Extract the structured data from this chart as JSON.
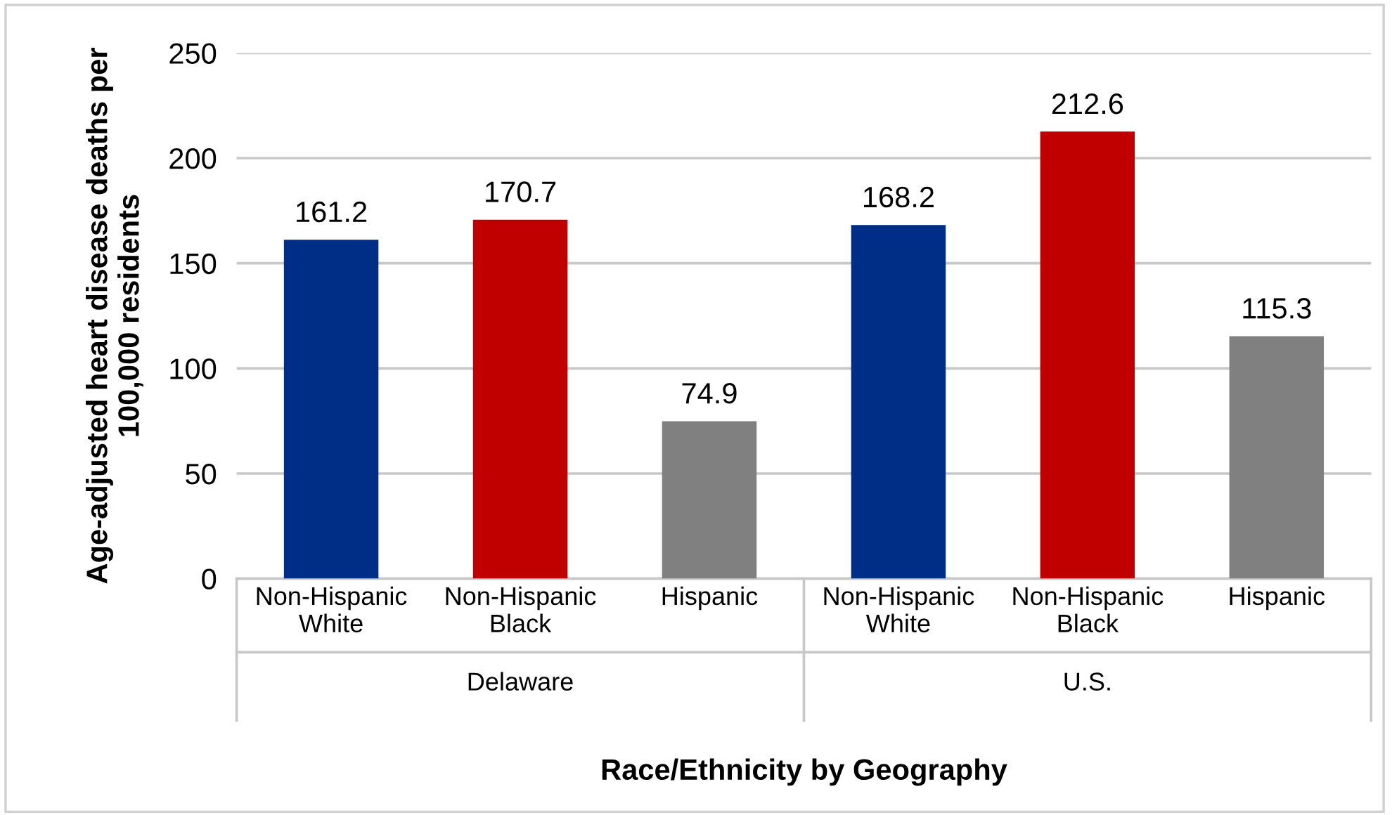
{
  "chart_data": {
    "type": "bar",
    "categories": [
      "Non-Hispanic\nWhite",
      "Non-Hispanic\nBlack",
      "Hispanic",
      "Non-Hispanic\nWhite",
      "Non-Hispanic\nBlack",
      "Hispanic"
    ],
    "values": [
      161.2,
      170.7,
      74.9,
      168.2,
      212.6,
      115.3
    ],
    "colors": [
      "#002d86",
      "#c00000",
      "#808080",
      "#002d86",
      "#c00000",
      "#808080"
    ],
    "xlabel": "Race/Ethnicity by Geography",
    "ylabel": "Age-adjusted heart disease deaths per\n100,000 residents",
    "annotations": [
      "Delaware",
      "U.S."
    ],
    "ylim": [
      0,
      250
    ],
    "yticks": [
      0,
      50,
      100,
      150,
      200,
      250
    ],
    "grid": "y",
    "data_labels": true
  }
}
